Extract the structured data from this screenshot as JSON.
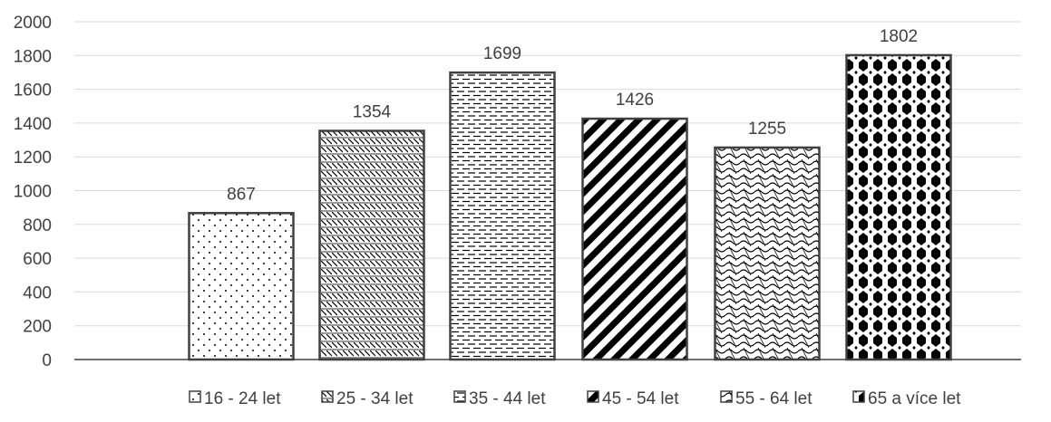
{
  "chart_data": {
    "type": "bar",
    "categories": [
      "16 - 24 let",
      "25 - 34 let",
      "35 - 44 let",
      "45 - 54 let",
      "55 - 64 let",
      "65 a více let"
    ],
    "values": [
      867,
      1354,
      1699,
      1426,
      1255,
      1802
    ],
    "data_labels": [
      "867",
      "1354",
      "1699",
      "1426",
      "1255",
      "1802"
    ],
    "y_ticks": [
      "0",
      "200",
      "400",
      "600",
      "800",
      "1000",
      "1200",
      "1400",
      "1600",
      "1800",
      "2000"
    ],
    "ylim": [
      0,
      2000
    ],
    "grid": true,
    "legend_position": "bottom",
    "legend": [
      "16 - 24 let",
      "25 - 34 let",
      "35 - 44 let",
      "45 - 54 let",
      "55 - 64 let",
      "65 a více let"
    ],
    "patterns": [
      "dots",
      "fine-diagonal",
      "dashed-horizontal",
      "wide-diagonal",
      "wave",
      "diamonds"
    ],
    "colors": {
      "bar_fill": "#ffffff",
      "bar_stroke": "#404040",
      "pattern": "#000000",
      "grid": "#d9d9d9",
      "text": "#404040"
    }
  }
}
